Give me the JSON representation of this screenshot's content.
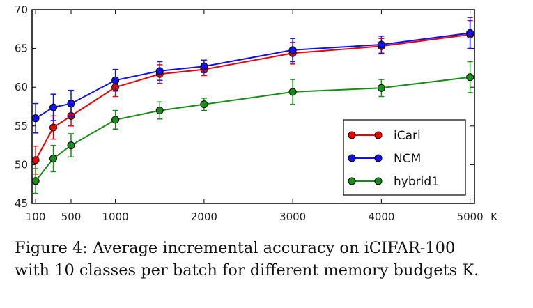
{
  "chart_data": {
    "type": "line",
    "title": "",
    "xlabel": "K",
    "ylabel": "",
    "xlim": [
      60,
      5050
    ],
    "ylim": [
      45,
      70
    ],
    "grid": false,
    "legend_position": "lower-right",
    "x": [
      100,
      300,
      500,
      1000,
      1500,
      2000,
      3000,
      4000,
      5000
    ],
    "xticks": [
      "100",
      "500",
      "1000",
      "2000",
      "3000",
      "4000",
      "5000"
    ],
    "xtick_values": [
      100,
      500,
      1000,
      2000,
      3000,
      4000,
      5000
    ],
    "yticks": [
      "45",
      "50",
      "55",
      "60",
      "65",
      "70"
    ],
    "ytick_values": [
      45,
      50,
      55,
      60,
      65,
      70
    ],
    "series": [
      {
        "name": "iCarl",
        "color": "#ee0000",
        "values": [
          50.6,
          54.8,
          56.3,
          60.0,
          61.7,
          62.3,
          64.4,
          65.3,
          66.8
        ],
        "errors": [
          1.8,
          1.5,
          1.3,
          1.2,
          1.2,
          0.8,
          1.4,
          1.0,
          1.8
        ]
      },
      {
        "name": "NCM",
        "color": "#1111ee",
        "values": [
          56.0,
          57.4,
          57.9,
          60.9,
          62.1,
          62.7,
          64.8,
          65.5,
          67.0
        ],
        "errors": [
          1.9,
          1.7,
          1.7,
          1.4,
          1.2,
          0.8,
          1.5,
          1.1,
          2.0
        ]
      },
      {
        "name": "hybrid1",
        "color": "#1a8c1a",
        "values": [
          47.9,
          50.8,
          52.5,
          55.8,
          57.0,
          57.8,
          59.4,
          59.9,
          61.3
        ],
        "errors": [
          1.6,
          1.7,
          1.5,
          1.2,
          1.1,
          0.8,
          1.6,
          1.1,
          2.0
        ]
      }
    ]
  },
  "caption": {
    "line1": "Figure 4:  Average incremental accuracy on iCIFAR-100",
    "line2": "with 10 classes per batch for different memory budgets K."
  }
}
